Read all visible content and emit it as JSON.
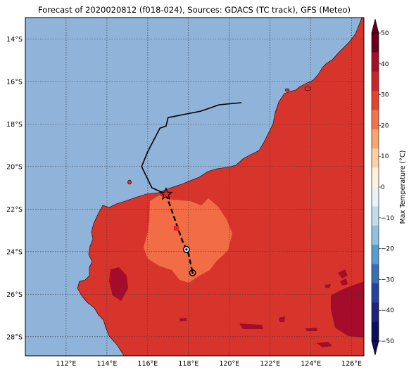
{
  "title": "Forecast of 2020020812 (f018-024), Sources: GDACS (TC track), GFS (Meteo)",
  "map": {
    "lon_range": [
      110.0,
      126.6
    ],
    "lat_range": [
      -28.9,
      -13.0
    ],
    "lon_ticks": [
      "112°E",
      "114°E",
      "116°E",
      "118°E",
      "120°E",
      "122°E",
      "124°E",
      "126°E"
    ],
    "lon_tick_values": [
      112,
      114,
      116,
      118,
      120,
      122,
      124,
      126
    ],
    "lat_ticks": [
      "14°S",
      "16°S",
      "18°S",
      "20°S",
      "22°S",
      "24°S",
      "26°S",
      "28°S"
    ],
    "lat_tick_values": [
      -14,
      -16,
      -18,
      -20,
      -22,
      -24,
      -26,
      -28
    ],
    "gridlines": true,
    "ocean_color": "#8fb3d9",
    "land_color": "#d7352b",
    "warm_region_color": "#f26d45",
    "hot_region_color": "#a50b2a"
  },
  "tc_track": {
    "past": [
      [
        120.6,
        -17.0
      ],
      [
        119.5,
        -17.1
      ],
      [
        118.6,
        -17.4
      ],
      [
        117.0,
        -17.7
      ],
      [
        116.9,
        -18.1
      ],
      [
        116.6,
        -18.2
      ],
      [
        116.0,
        -19.3
      ],
      [
        115.7,
        -20.0
      ],
      [
        116.2,
        -21.0
      ],
      [
        116.9,
        -21.3
      ]
    ],
    "forecast": [
      [
        116.9,
        -21.3
      ],
      [
        117.3,
        -22.4
      ],
      [
        117.7,
        -23.5
      ],
      [
        118.0,
        -24.1
      ],
      [
        118.2,
        -25.0
      ]
    ],
    "current_position": [
      116.9,
      -21.3
    ],
    "forecast_points": [
      [
        117.4,
        -22.9
      ],
      [
        117.9,
        -23.9
      ],
      [
        118.2,
        -25.0
      ]
    ]
  },
  "colorbar": {
    "label": "Max Temperature (°C)",
    "tick_labels": [
      "50",
      "40",
      "30",
      "20",
      "10",
      "0",
      "−10",
      "−20",
      "−30",
      "−40",
      "−50"
    ],
    "tick_values": [
      50,
      40,
      30,
      20,
      10,
      0,
      -10,
      -20,
      -30,
      -40,
      -50
    ],
    "bands": [
      "#67001f",
      "#a50f2a",
      "#c8262b",
      "#e0452f",
      "#f4734a",
      "#f8a572",
      "#fdd1a6",
      "#fff1dd",
      "#e8f3f9",
      "#c2dcec",
      "#92c0df",
      "#5a9ccd",
      "#3a6fb0",
      "#26439a",
      "#1c2378",
      "#0d0f5c"
    ]
  }
}
